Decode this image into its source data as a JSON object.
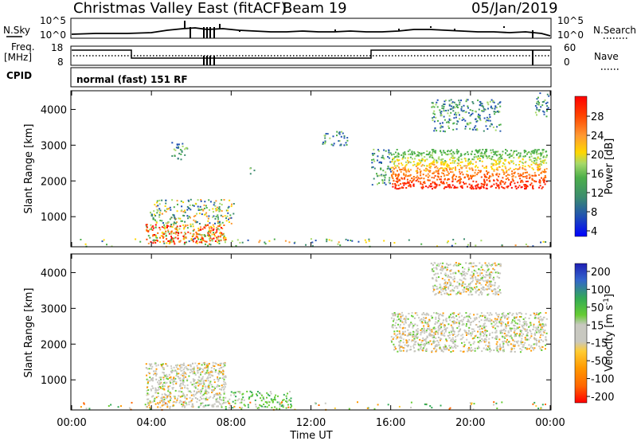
{
  "header": {
    "station": "Christmas Valley East (fitACF)",
    "beam": "Beam 19",
    "date": "05/Jan/2019"
  },
  "summary": {
    "nsky_label": "N.Sky",
    "nsearch_label": "N.Search",
    "nsky_ticks": [
      "10^5",
      "10^0"
    ],
    "nsearch_ticks": [
      "10^5",
      "10^0"
    ],
    "freq_label_1": "Freq.",
    "freq_label_2": "[MHz]",
    "freq_ticks": [
      "18",
      "8"
    ],
    "nave_label": "Nave",
    "nave_ticks": [
      "60",
      "0"
    ],
    "cpid_label": "CPID",
    "cpid_value": "normal (fast) 151 RF"
  },
  "chart_data": [
    {
      "type": "heatmap",
      "title": "",
      "xlabel": "Time UT",
      "ylabel": "Slant Range [km]",
      "x_ticks": [
        "00:00",
        "04:00",
        "08:00",
        "12:00",
        "16:00",
        "20:00",
        "00:00"
      ],
      "y_ticks": [
        "1000",
        "2000",
        "3000",
        "4000"
      ],
      "xlim_hours": [
        0,
        24
      ],
      "ylim_km": [
        180,
        4500
      ],
      "colorbar": {
        "label": "Power [dB]",
        "ticks": [
          "28",
          "24",
          "20",
          "16",
          "12",
          "8",
          "4"
        ],
        "colors": [
          "#0000ff",
          "#1f4fb4",
          "#3c8c6e",
          "#4daf4a",
          "#a6d96a",
          "#ffd700",
          "#ff9933",
          "#ff4500",
          "#ff0000"
        ]
      },
      "regions": [
        {
          "t_start": 3.7,
          "t_end": 7.7,
          "r_start": 250,
          "r_end": 800,
          "level": "strong"
        },
        {
          "t_start": 3.9,
          "t_end": 8.1,
          "r_start": 800,
          "r_end": 1500,
          "level": "moderate"
        },
        {
          "t_start": 5.0,
          "t_end": 5.8,
          "r_start": 2600,
          "r_end": 3100,
          "level": "weak"
        },
        {
          "t_start": 8.9,
          "t_end": 9.2,
          "r_start": 2200,
          "r_end": 2400,
          "level": "weak"
        },
        {
          "t_start": 12.5,
          "t_end": 13.8,
          "r_start": 3000,
          "r_end": 3400,
          "level": "weak"
        },
        {
          "t_start": 15.0,
          "t_end": 16.0,
          "r_start": 1900,
          "r_end": 2900,
          "level": "weak"
        },
        {
          "t_start": 16.0,
          "t_end": 23.8,
          "r_start": 1800,
          "r_end": 2900,
          "level": "strong"
        },
        {
          "t_start": 18.0,
          "t_end": 21.5,
          "r_start": 3400,
          "r_end": 4300,
          "level": "weak"
        },
        {
          "t_start": 23.2,
          "t_end": 23.9,
          "r_start": 3800,
          "r_end": 4500,
          "level": "weak"
        },
        {
          "t_start": 0.0,
          "t_end": 24.0,
          "r_start": 180,
          "r_end": 400,
          "level": "noise"
        }
      ]
    },
    {
      "type": "heatmap",
      "title": "",
      "xlabel": "Time UT",
      "ylabel": "Slant Range [km]",
      "x_ticks": [
        "00:00",
        "04:00",
        "08:00",
        "12:00",
        "16:00",
        "20:00",
        "00:00"
      ],
      "y_ticks": [
        "1000",
        "2000",
        "3000",
        "4000"
      ],
      "xlim_hours": [
        0,
        24
      ],
      "ylim_km": [
        180,
        4500
      ],
      "colorbar": {
        "label": "Velocity [m s^-1]",
        "ticks": [
          "200",
          "100",
          "50",
          "15",
          "-15",
          "-50",
          "-100",
          "-200"
        ],
        "colors": [
          "#ff0000",
          "#ff6600",
          "#ff9900",
          "#ffcc33",
          "#c8c8c0",
          "#c8c8c0",
          "#66cc33",
          "#33aa55",
          "#3366cc",
          "#1f1fb4"
        ]
      },
      "regions": [
        {
          "t_start": 3.7,
          "t_end": 7.7,
          "r_start": 250,
          "r_end": 1500,
          "level": "gray"
        },
        {
          "t_start": 7.8,
          "t_end": 11.0,
          "r_start": 200,
          "r_end": 700,
          "level": "green"
        },
        {
          "t_start": 16.0,
          "t_end": 23.8,
          "r_start": 1800,
          "r_end": 2900,
          "level": "gray"
        },
        {
          "t_start": 18.0,
          "t_end": 21.5,
          "r_start": 3400,
          "r_end": 4300,
          "level": "gray"
        },
        {
          "t_start": 0.0,
          "t_end": 24.0,
          "r_start": 180,
          "r_end": 400,
          "level": "noise"
        }
      ]
    }
  ]
}
